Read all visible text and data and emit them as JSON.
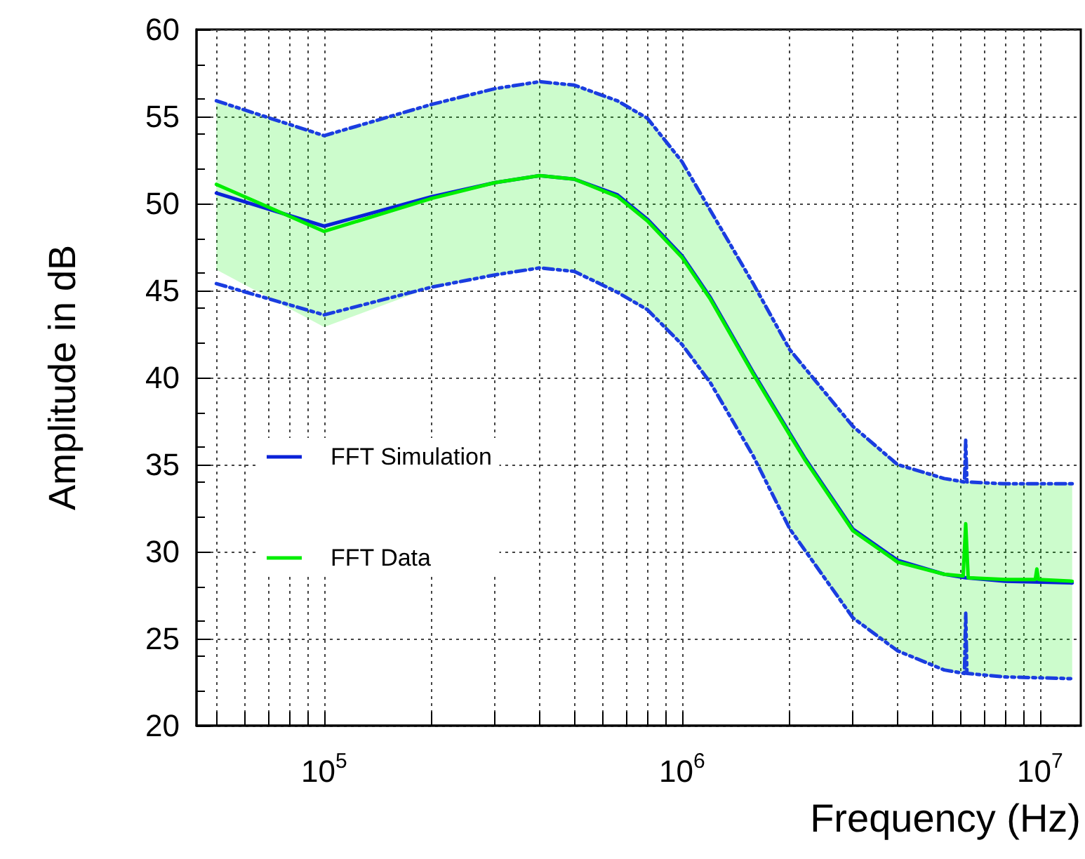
{
  "chart_data": {
    "type": "line",
    "xlabel": "Frequency (Hz)",
    "ylabel": "Amplitude in dB",
    "log": "x",
    "xlim": [
      44000,
      13000000
    ],
    "xticks": [
      {
        "value": 50000,
        "label": null
      },
      {
        "value": 60000,
        "label": null
      },
      {
        "value": 70000,
        "label": null
      },
      {
        "value": 80000,
        "label": null
      },
      {
        "value": 90000,
        "label": null
      },
      {
        "value": 100000,
        "label": "10$^{5}$"
      },
      {
        "value": 200000,
        "label": null
      },
      {
        "value": 300000,
        "label": null
      },
      {
        "value": 400000,
        "label": null
      },
      {
        "value": 500000,
        "label": null
      },
      {
        "value": 600000,
        "label": null
      },
      {
        "value": 700000,
        "label": null
      },
      {
        "value": 800000,
        "label": null
      },
      {
        "value": 900000,
        "label": null
      },
      {
        "value": 1000000,
        "label": "10$^{6}$"
      },
      {
        "value": 2000000,
        "label": null
      },
      {
        "value": 3000000,
        "label": null
      },
      {
        "value": 4000000,
        "label": null
      },
      {
        "value": 5000000,
        "label": null
      },
      {
        "value": 6000000,
        "label": null
      },
      {
        "value": 7000000,
        "label": null
      },
      {
        "value": 8000000,
        "label": null
      },
      {
        "value": 9000000,
        "label": null
      },
      {
        "value": 10000000,
        "label": "10$^{7}$"
      }
    ],
    "ylim": [
      20,
      60
    ],
    "yticks": [
      20,
      25,
      30,
      35,
      40,
      45,
      50,
      55,
      60
    ],
    "grid": true,
    "legend": "left",
    "marker": "none",
    "line_style": "solid",
    "series": [
      {
        "type": "line",
        "line_style": "dashed",
        "color": "#1a3de0",
        "x": [
          50000,
          100000,
          200000,
          300000,
          400000,
          500000,
          660000,
          800000,
          1000000,
          1200000,
          1580000,
          2000000,
          3000000,
          4000000,
          5400000,
          6150000,
          6200000,
          6250000,
          8000000,
          12300000
        ],
        "values": [
          55.9,
          53.9,
          55.7,
          56.6,
          57.0,
          56.8,
          55.9,
          54.9,
          52.4,
          49.6,
          45.4,
          41.6,
          37.2,
          35.0,
          34.2,
          34.0,
          36.4,
          34.0,
          33.9,
          33.9
        ]
      },
      {
        "type": "line",
        "line_style": "dashed",
        "color": "#1a3de0",
        "x": [
          50000,
          100000,
          200000,
          300000,
          400000,
          500000,
          660000,
          800000,
          1000000,
          1200000,
          1580000,
          2000000,
          3000000,
          4000000,
          5400000,
          6150000,
          6200000,
          6250000,
          8000000,
          12300000
        ],
        "values": [
          45.4,
          43.6,
          45.2,
          45.9,
          46.3,
          46.1,
          44.9,
          43.9,
          41.9,
          39.7,
          35.5,
          31.3,
          26.2,
          24.3,
          23.2,
          23.0,
          26.5,
          23.0,
          22.8,
          22.7
        ]
      },
      {
        "name": "FFT Simulation",
        "color": "#0a22d8",
        "x": [
          50000,
          100000,
          200000,
          300000,
          400000,
          500000,
          660000,
          800000,
          1000000,
          1200000,
          1580000,
          2000000,
          2200000,
          3000000,
          4000000,
          5400000,
          6200000,
          8000000,
          12300000
        ],
        "values": [
          50.6,
          48.7,
          50.4,
          51.2,
          51.6,
          51.4,
          50.5,
          49.1,
          47.0,
          44.6,
          40.3,
          36.8,
          35.4,
          31.3,
          29.5,
          28.7,
          28.5,
          28.3,
          28.2
        ]
      },
      {
        "name": "FFT Data",
        "color": "#00ee00",
        "x": [
          50000,
          100000,
          200000,
          300000,
          400000,
          500000,
          660000,
          800000,
          1000000,
          1200000,
          1580000,
          2000000,
          2200000,
          3000000,
          4000000,
          5400000,
          6100000,
          6200000,
          6300000,
          8000000,
          9700000,
          9800000,
          9900000,
          12300000
        ],
        "values": [
          51.1,
          48.4,
          50.3,
          51.2,
          51.6,
          51.4,
          50.4,
          49.0,
          46.9,
          44.5,
          40.2,
          36.7,
          35.3,
          31.2,
          29.4,
          28.7,
          28.6,
          31.6,
          28.5,
          28.4,
          28.4,
          29.0,
          28.4,
          28.3
        ],
        "lower": [
          46.2,
          42.9,
          45.2,
          45.9,
          46.3,
          46.1,
          44.9,
          43.8,
          41.9,
          39.8,
          35.6,
          31.3,
          30.0,
          26.1,
          24.3,
          23.2,
          23.0,
          23.0,
          23.0,
          22.8,
          22.7,
          22.7,
          22.7,
          22.7
        ],
        "upper": [
          55.9,
          53.9,
          55.7,
          56.6,
          57.0,
          56.8,
          55.9,
          54.9,
          52.4,
          49.6,
          45.4,
          41.6,
          40.6,
          37.2,
          35.0,
          34.2,
          34.0,
          34.0,
          34.0,
          33.9,
          33.9,
          33.9,
          33.9,
          33.9
        ]
      }
    ]
  }
}
